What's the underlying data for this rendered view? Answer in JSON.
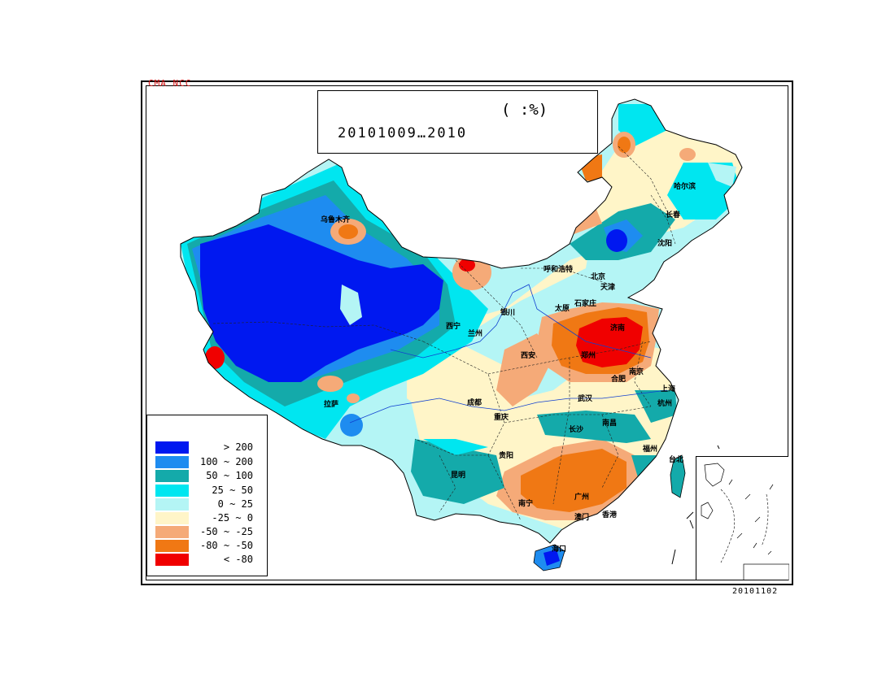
{
  "agency": "CMA NCC",
  "title": {
    "unit": "(   :%)",
    "period": "20101009…2010"
  },
  "date_stamp": "20101102",
  "legend": {
    "items": [
      {
        "label": "> 200",
        "color": "#0018f0"
      },
      {
        "label": "100 ~ 200",
        "color": "#1e8cf0"
      },
      {
        "label": "50 ~ 100",
        "color": "#14aaaa"
      },
      {
        "label": "25 ~ 50",
        "color": "#00e6f0"
      },
      {
        "label": "0 ~ 25",
        "color": "#b4f5f5"
      },
      {
        "label": "-25 ~ 0",
        "color": "#fff5c8"
      },
      {
        "label": "-50 ~ -25",
        "color": "#f5aa78"
      },
      {
        "label": "-80 ~ -50",
        "color": "#f07814"
      },
      {
        "label": "< -80",
        "color": "#f00000"
      }
    ]
  },
  "cities": [
    {
      "name": "乌鲁木齐"
    },
    {
      "name": "哈尔滨"
    },
    {
      "name": "长春"
    },
    {
      "name": "沈阳"
    },
    {
      "name": "呼和浩特"
    },
    {
      "name": "北京"
    },
    {
      "name": "天津"
    },
    {
      "name": "太原"
    },
    {
      "name": "石家庄"
    },
    {
      "name": "银川"
    },
    {
      "name": "西宁"
    },
    {
      "name": "兰州"
    },
    {
      "name": "济南"
    },
    {
      "name": "郑州"
    },
    {
      "name": "西安"
    },
    {
      "name": "合肥"
    },
    {
      "name": "南京"
    },
    {
      "name": "上海"
    },
    {
      "name": "拉萨"
    },
    {
      "name": "成都"
    },
    {
      "name": "重庆"
    },
    {
      "name": "武汉"
    },
    {
      "name": "杭州"
    },
    {
      "name": "长沙"
    },
    {
      "name": "南昌"
    },
    {
      "name": "福州"
    },
    {
      "name": "贵阳"
    },
    {
      "name": "昆明"
    },
    {
      "name": "台北"
    },
    {
      "name": "南宁"
    },
    {
      "name": "广州"
    },
    {
      "name": "澳门"
    },
    {
      "name": "香港"
    },
    {
      "name": "海口"
    }
  ]
}
